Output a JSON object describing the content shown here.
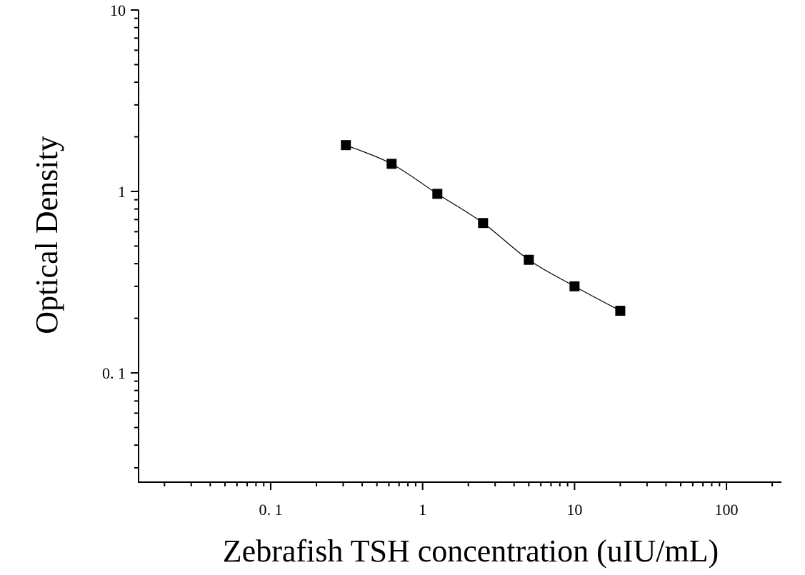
{
  "chart_data": {
    "type": "scatter",
    "title": "",
    "xlabel": "Zebrafish TSH concentration (uIU/mL)",
    "ylabel": "Optical Density",
    "x_scale": "log",
    "y_scale": "log",
    "xlim": [
      0.0135,
      230
    ],
    "ylim": [
      0.025,
      10
    ],
    "x_tick_values": [
      0.1,
      1,
      10,
      100
    ],
    "x_tick_labels": [
      "0. 1",
      "1",
      "10",
      "100"
    ],
    "y_tick_values": [
      0.1,
      1,
      10
    ],
    "y_tick_labels": [
      "0. 1",
      "1",
      "10"
    ],
    "grid": false,
    "series": [
      {
        "marker": "square",
        "color": "#000000",
        "x": [
          0.3125,
          0.625,
          1.25,
          2.5,
          5,
          10,
          20
        ],
        "y": [
          1.8,
          1.42,
          0.97,
          0.67,
          0.42,
          0.3,
          0.22
        ],
        "fit_curve": true
      }
    ]
  }
}
